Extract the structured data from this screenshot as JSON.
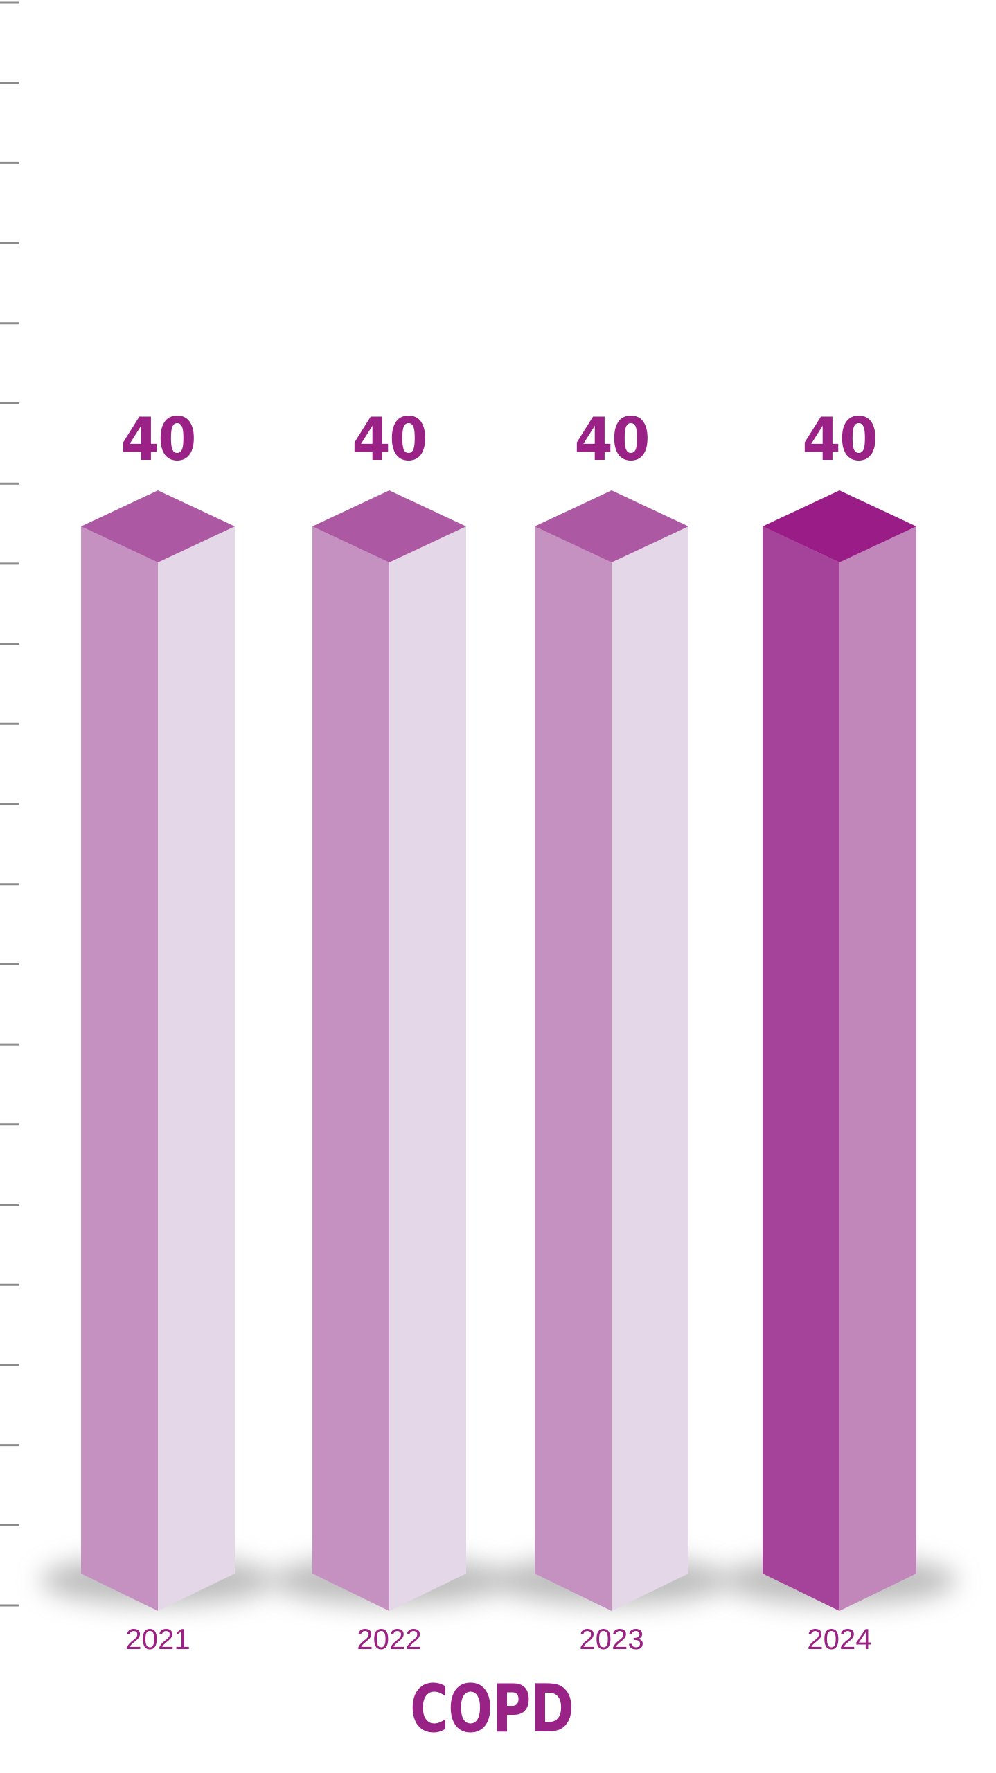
{
  "chart_data": {
    "type": "bar",
    "variant": "3d-column",
    "title": "COPD",
    "categories": [
      "2021",
      "2022",
      "2023",
      "2024"
    ],
    "values": [
      40,
      40,
      40,
      40
    ],
    "series": [
      {
        "name": "COPD",
        "values": [
          40,
          40,
          40,
          40
        ]
      }
    ],
    "bars": [
      {
        "year": "2021",
        "value": "40",
        "highlighted": false
      },
      {
        "year": "2022",
        "value": "40",
        "highlighted": false
      },
      {
        "year": "2023",
        "value": "40",
        "highlighted": false
      },
      {
        "year": "2024",
        "value": "40",
        "highlighted": true
      }
    ],
    "highlighted_category": "2024",
    "legend": {
      "visible": false
    },
    "y_axis": {
      "tick_count": 21,
      "tick_labels_visible": false
    },
    "colors": {
      "bar_faces": {
        "top": "#AC58A3",
        "left": "#C591C0",
        "right": "#E4D7E7"
      },
      "highlight_faces": {
        "top": "#9A1D87",
        "left": "#A5439A",
        "right": "#C187BA"
      },
      "value_label_color": "#9A2286",
      "category_label_color": "#9B2183",
      "title_color": "#992286",
      "tick_color": "#8A8A8A",
      "shadow_color": "#7D7D7D",
      "background": "#FFFFFF"
    }
  }
}
